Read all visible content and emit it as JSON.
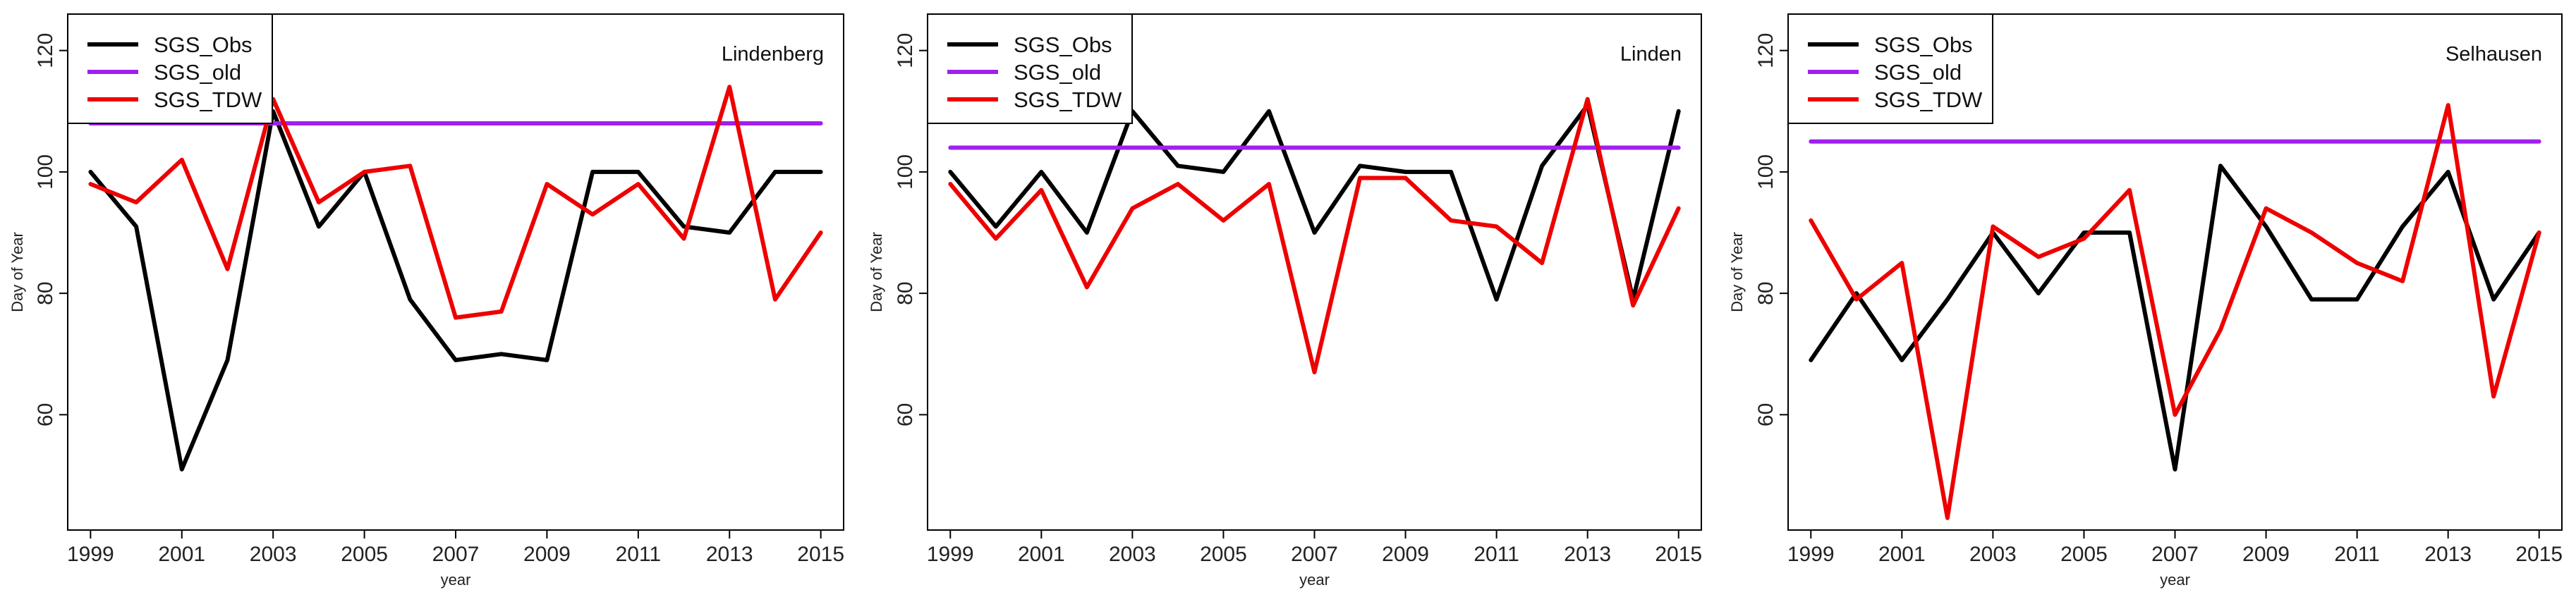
{
  "chart_data": [
    {
      "type": "line",
      "title": "Lindenberg",
      "xlabel": "year",
      "ylabel": "Day of Year",
      "x": [
        1999,
        2000,
        2001,
        2002,
        2003,
        2004,
        2005,
        2006,
        2007,
        2008,
        2009,
        2010,
        2011,
        2012,
        2013,
        2014,
        2015
      ],
      "xticks": [
        1999,
        2001,
        2003,
        2005,
        2007,
        2009,
        2011,
        2013,
        2015
      ],
      "yticks": [
        60,
        80,
        100,
        120
      ],
      "xlim": [
        1998.5,
        2015.5
      ],
      "ylim": [
        41,
        126
      ],
      "grid": false,
      "legend_position": "top-left",
      "series": [
        {
          "name": "SGS_Obs",
          "color": "#000000",
          "values": [
            100,
            91,
            51,
            69,
            110,
            91,
            100,
            79,
            69,
            70,
            69,
            100,
            100,
            91,
            90,
            100,
            100
          ]
        },
        {
          "name": "SGS_old",
          "color": "#a020f0",
          "values": [
            108,
            108,
            108,
            108,
            108,
            108,
            108,
            108,
            108,
            108,
            108,
            108,
            108,
            108,
            108,
            108,
            108
          ]
        },
        {
          "name": "SGS_TDW",
          "color": "#ee0000",
          "values": [
            98,
            95,
            102,
            84,
            112,
            95,
            100,
            101,
            76,
            77,
            98,
            93,
            98,
            89,
            114,
            79,
            90
          ]
        }
      ]
    },
    {
      "type": "line",
      "title": "Linden",
      "xlabel": "year",
      "ylabel": "Day of Year",
      "x": [
        1999,
        2000,
        2001,
        2002,
        2003,
        2004,
        2005,
        2006,
        2007,
        2008,
        2009,
        2010,
        2011,
        2012,
        2013,
        2014,
        2015
      ],
      "xticks": [
        1999,
        2001,
        2003,
        2005,
        2007,
        2009,
        2011,
        2013,
        2015
      ],
      "yticks": [
        60,
        80,
        100,
        120
      ],
      "xlim": [
        1998.5,
        2015.5
      ],
      "ylim": [
        41,
        126
      ],
      "grid": false,
      "legend_position": "top-left",
      "series": [
        {
          "name": "SGS_Obs",
          "color": "#000000",
          "values": [
            100,
            91,
            100,
            90,
            110,
            101,
            100,
            110,
            90,
            101,
            100,
            100,
            79,
            101,
            111,
            79,
            110
          ]
        },
        {
          "name": "SGS_old",
          "color": "#a020f0",
          "values": [
            104,
            104,
            104,
            104,
            104,
            104,
            104,
            104,
            104,
            104,
            104,
            104,
            104,
            104,
            104,
            104,
            104
          ]
        },
        {
          "name": "SGS_TDW",
          "color": "#ee0000",
          "values": [
            98,
            89,
            97,
            81,
            94,
            98,
            92,
            98,
            67,
            99,
            99,
            92,
            91,
            85,
            112,
            78,
            94
          ]
        }
      ]
    },
    {
      "type": "line",
      "title": "Selhausen",
      "xlabel": "year",
      "ylabel": "Day of Year",
      "x": [
        1999,
        2000,
        2001,
        2002,
        2003,
        2004,
        2005,
        2006,
        2007,
        2008,
        2009,
        2010,
        2011,
        2012,
        2013,
        2014,
        2015
      ],
      "xticks": [
        1999,
        2001,
        2003,
        2005,
        2007,
        2009,
        2011,
        2013,
        2015
      ],
      "yticks": [
        60,
        80,
        100,
        120
      ],
      "xlim": [
        1998.5,
        2015.5
      ],
      "ylim": [
        41,
        126
      ],
      "grid": false,
      "legend_position": "top-left",
      "series": [
        {
          "name": "SGS_Obs",
          "color": "#000000",
          "values": [
            69,
            80,
            69,
            79,
            90,
            80,
            90,
            90,
            51,
            101,
            91,
            79,
            79,
            91,
            100,
            79,
            90
          ]
        },
        {
          "name": "SGS_old",
          "color": "#a020f0",
          "values": [
            105,
            105,
            105,
            105,
            105,
            105,
            105,
            105,
            105,
            105,
            105,
            105,
            105,
            105,
            105,
            105,
            105
          ]
        },
        {
          "name": "SGS_TDW",
          "color": "#ee0000",
          "values": [
            92,
            79,
            85,
            43,
            91,
            86,
            89,
            97,
            60,
            74,
            94,
            90,
            85,
            82,
            111,
            63,
            90
          ]
        }
      ]
    }
  ]
}
